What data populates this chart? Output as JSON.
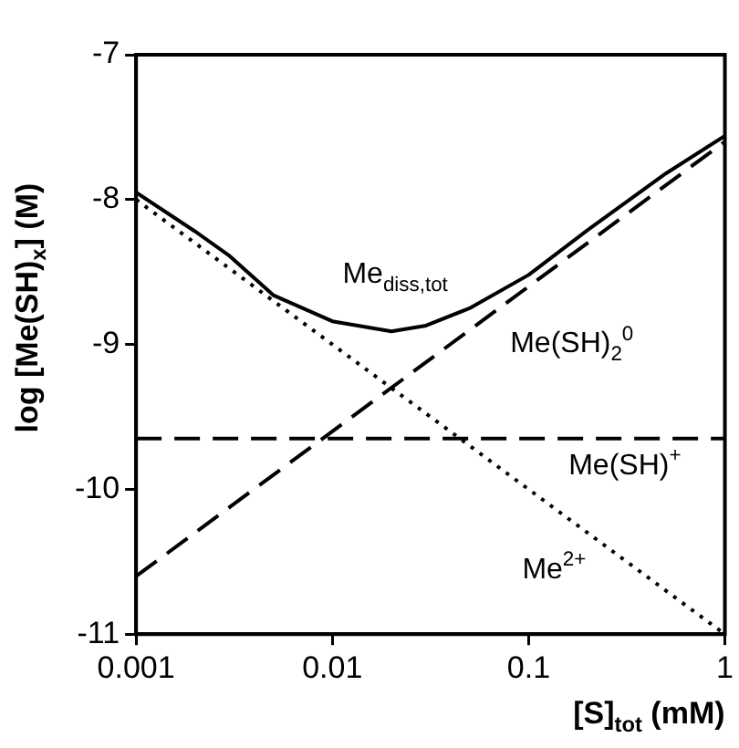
{
  "chart_data": {
    "type": "line",
    "xlabel": "[S]$_{tot}$ (mM)",
    "ylabel": "log [Me(SH)$_{x}$] (M)",
    "log": "x",
    "xlim": [
      0.001,
      1
    ],
    "xticks": [
      0.001,
      0.01,
      0.1,
      1
    ],
    "ylim": [
      -11,
      -7
    ],
    "yticks": [
      -11,
      -10,
      -9,
      -8,
      -7
    ],
    "grid": false,
    "legend": false,
    "marker": "none",
    "series": [
      {
        "name": "Me$_{diss,tot}$",
        "color": "#000000",
        "line_style": "solid",
        "x": [
          0.001,
          0.002,
          0.003,
          0.005,
          0.01,
          0.02,
          0.03,
          0.05,
          0.1,
          0.2,
          0.5,
          1
        ],
        "values": [
          -7.95,
          -8.22,
          -8.39,
          -8.66,
          -8.84,
          -8.91,
          -8.87,
          -8.75,
          -8.52,
          -8.21,
          -7.82,
          -7.56
        ]
      },
      {
        "name": "Me(SH)$_{2}$$^{0}$",
        "color": "#000000",
        "line_style": "dashed",
        "x": [
          0.001,
          1
        ],
        "values": [
          -10.6,
          -7.6
        ]
      },
      {
        "name": "Me(SH)$^{+}$",
        "color": "#000000",
        "line_style": "dashed",
        "x": [
          0.001,
          1
        ],
        "values": [
          -9.65,
          -9.65
        ]
      },
      {
        "name": "Me$^{2+}$",
        "color": "#000000",
        "line_style": "dotted",
        "x": [
          0.001,
          1
        ],
        "values": [
          -8,
          -11
        ]
      }
    ]
  }
}
